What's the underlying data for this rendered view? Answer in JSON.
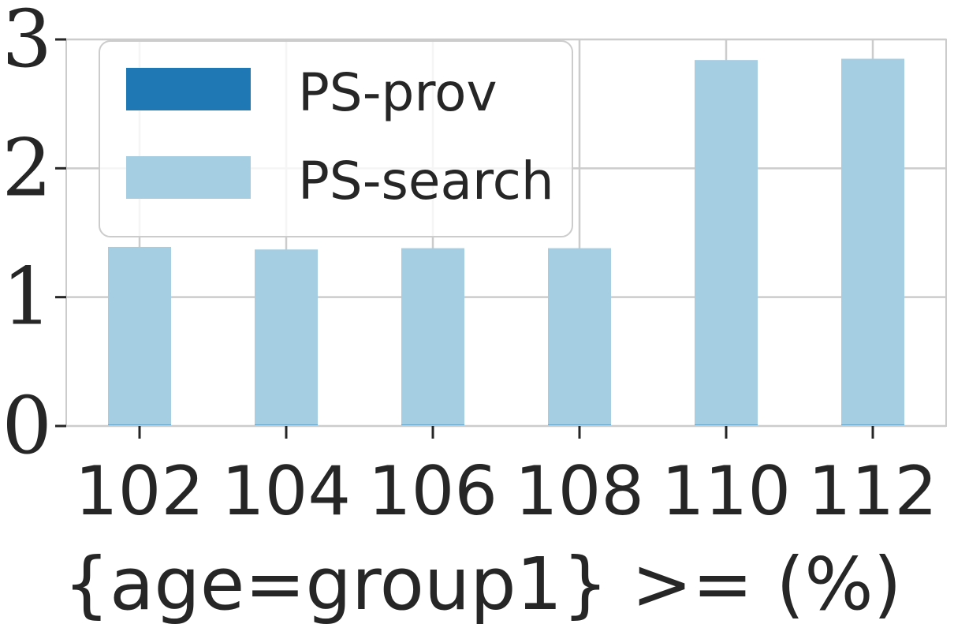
{
  "chart_data": {
    "type": "bar",
    "categories": [
      "102",
      "104",
      "106",
      "108",
      "110",
      "112"
    ],
    "series": [
      {
        "name": "PS-prov",
        "color": "#1f78b4",
        "values": [
          0.01,
          0.01,
          0.01,
          0.01,
          0.01,
          0.01
        ]
      },
      {
        "name": "PS-search",
        "color": "#a6cee3",
        "values": [
          1.38,
          1.36,
          1.37,
          1.37,
          2.83,
          2.84
        ]
      }
    ],
    "title": "",
    "xlabel": "{age=group1} >= (%)",
    "ylabel": "",
    "ylim": [
      0,
      3
    ],
    "yticks": [
      "0",
      "1",
      "2",
      "3"
    ],
    "grid": true,
    "legend_position": "upper-left",
    "colors": {
      "grid": "#cccccc",
      "spine": "#cccccc",
      "text": "#262626",
      "background": "#ffffff"
    }
  }
}
